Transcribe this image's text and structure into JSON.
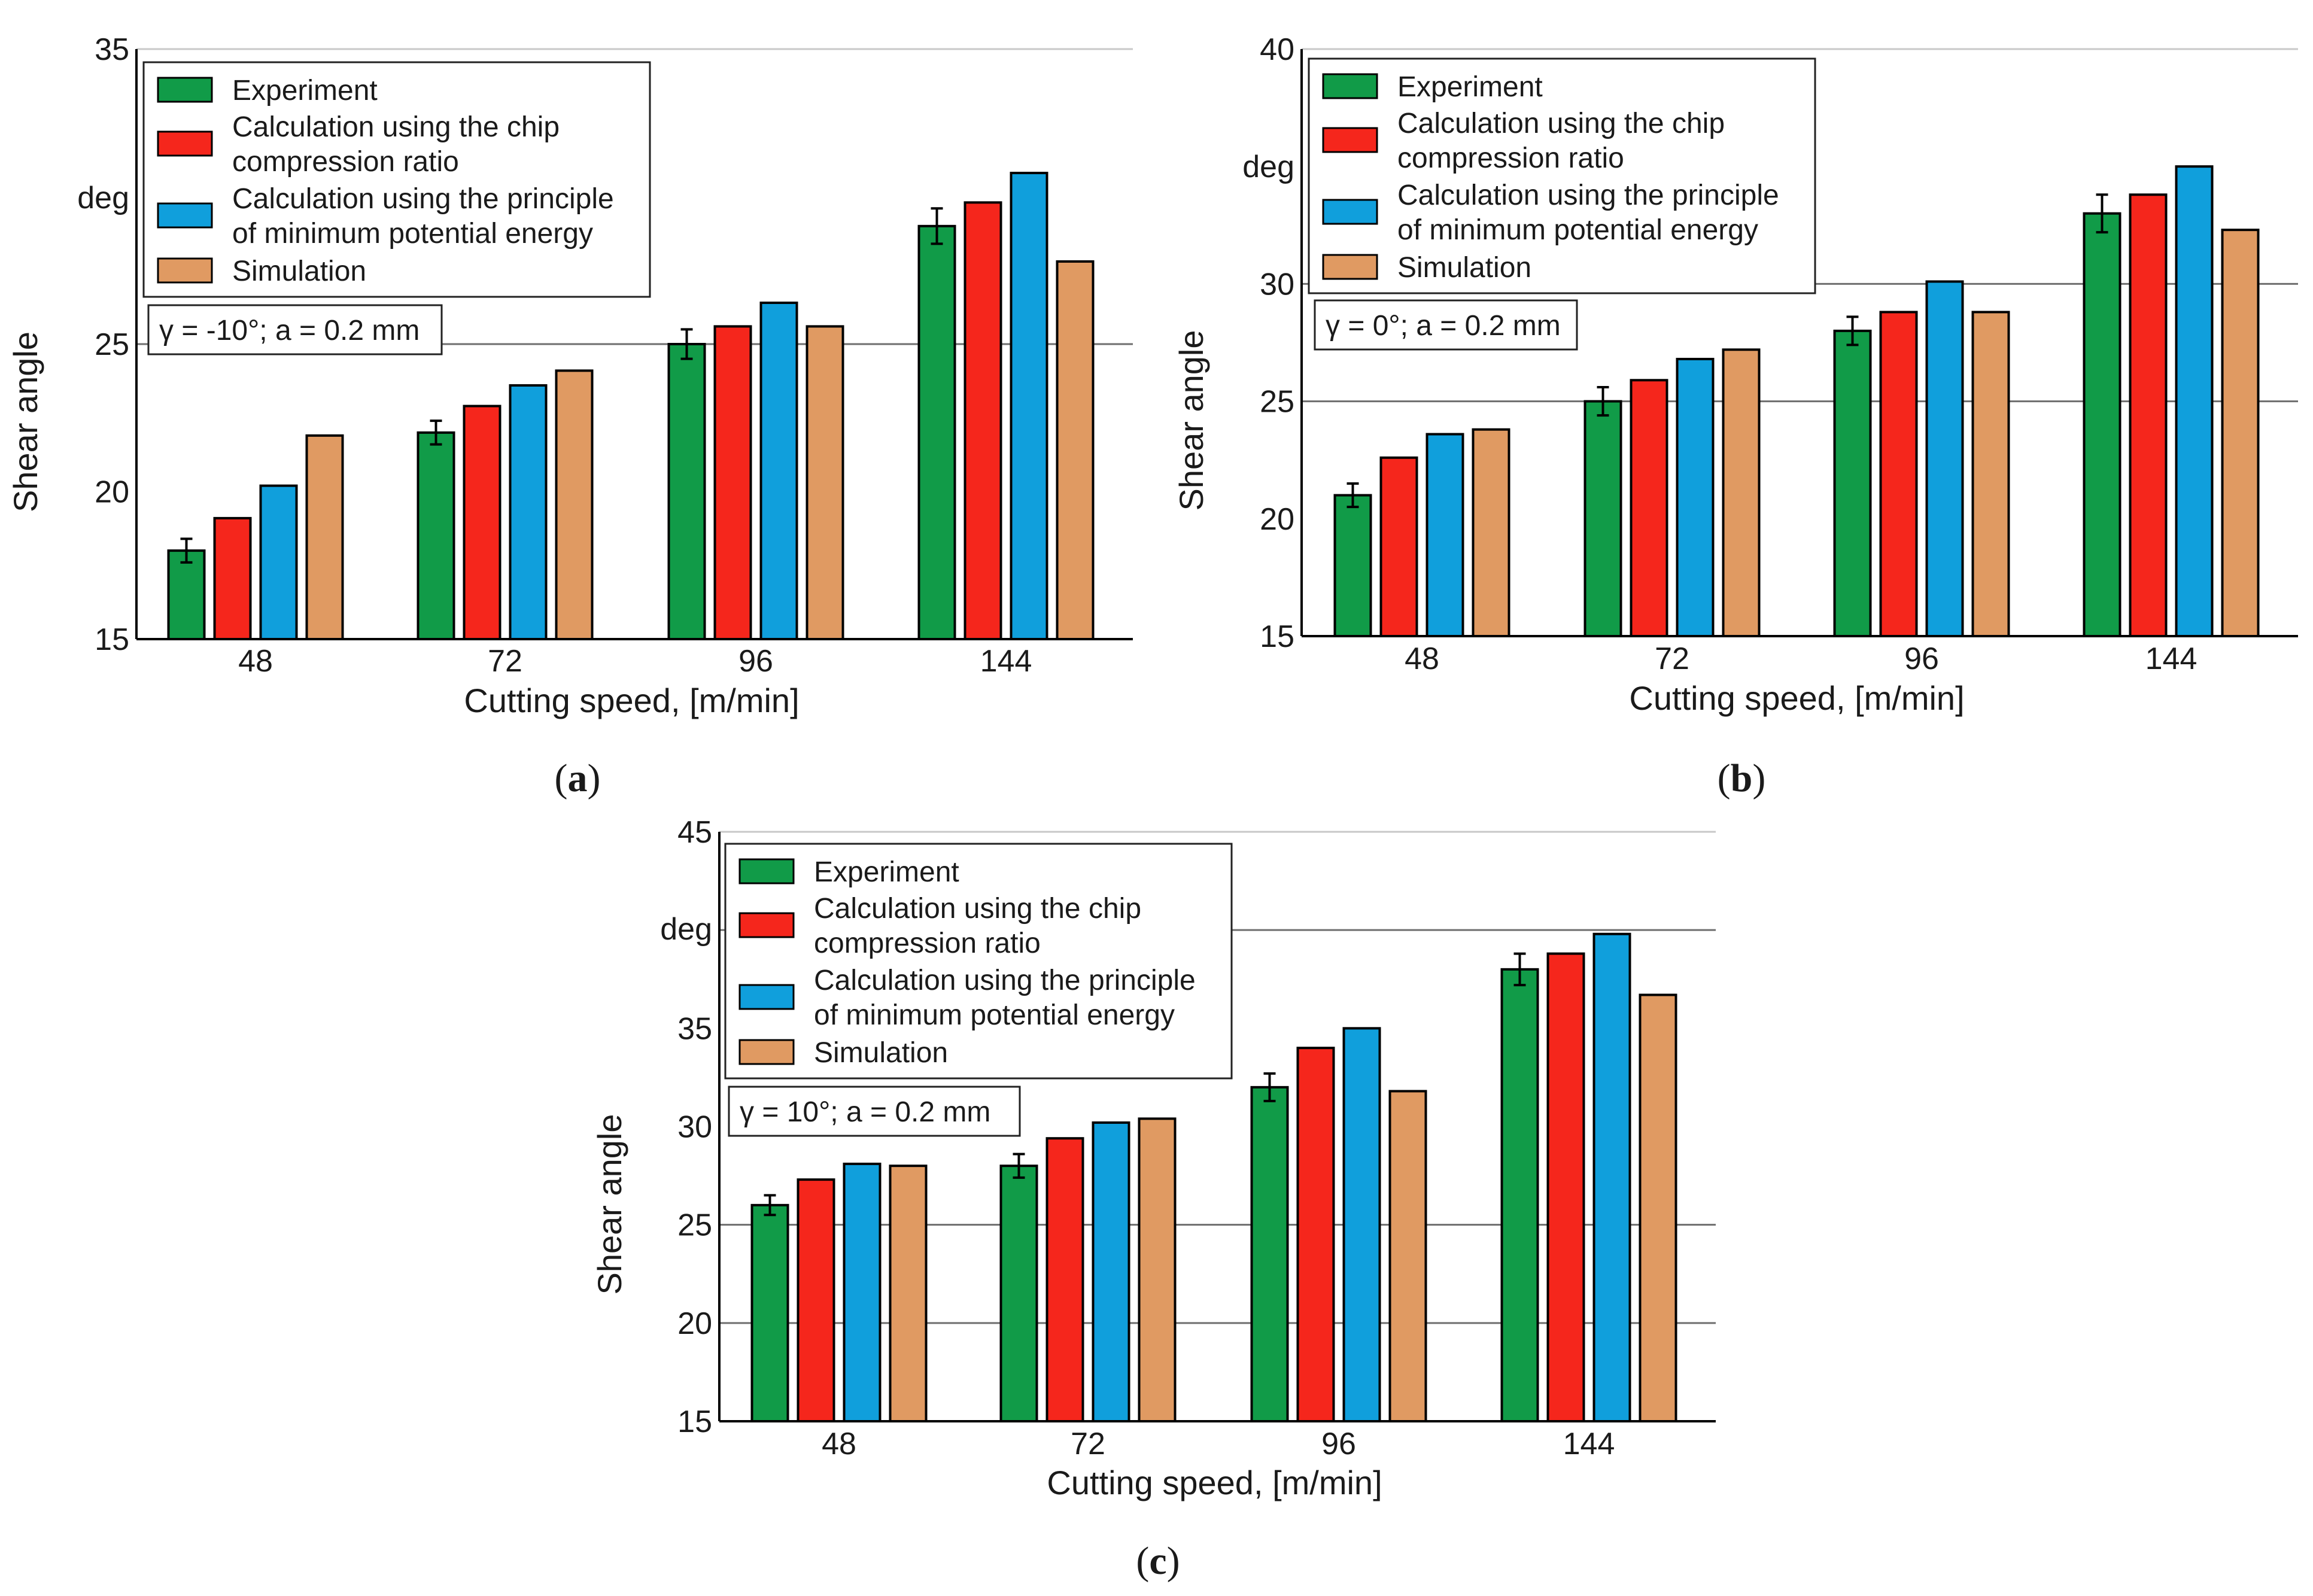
{
  "series_colors": {
    "Experiment": "#119b48",
    "Calculation using the chip compression ratio": "#f5261c",
    "Calculation using the principle of minimum potential energy": "#109fdc",
    "Simulation": "#e09a62"
  },
  "legend_lines": [
    [
      "Experiment"
    ],
    [
      "Calculation using the chip",
      "compression ratio"
    ],
    [
      "Calculation using the principle",
      "of minimum potential energy"
    ],
    [
      "Simulation"
    ]
  ],
  "chart_data": [
    {
      "type": "bar",
      "panel": "a",
      "caption_open": "(",
      "caption_letter": "a",
      "caption_close": ")",
      "title": "",
      "xlabel": "Cutting speed, [m/min]",
      "ylabel": "Shear angle",
      "yunit": "deg",
      "ylim": [
        15,
        35
      ],
      "yticks": [
        "15",
        "20",
        "25",
        "35"
      ],
      "gridlines": [
        25
      ],
      "categories": [
        "48",
        "72",
        "96",
        "144"
      ],
      "annotation": "γ = -10°; a = 0.2 mm",
      "legend_position": "top-left",
      "series": [
        {
          "name": "Experiment",
          "values": [
            18.0,
            22.0,
            25.0,
            29.0
          ],
          "errors": [
            0.4,
            0.4,
            0.5,
            0.6
          ]
        },
        {
          "name": "Calculation using the chip compression ratio",
          "values": [
            19.1,
            22.9,
            25.6,
            29.8
          ]
        },
        {
          "name": "Calculation using the principle of minimum potential energy",
          "values": [
            20.2,
            23.6,
            26.4,
            30.8
          ]
        },
        {
          "name": "Simulation",
          "values": [
            21.9,
            24.1,
            25.6,
            27.8
          ]
        }
      ]
    },
    {
      "type": "bar",
      "panel": "b",
      "caption_open": "(",
      "caption_letter": "b",
      "caption_close": ")",
      "title": "",
      "xlabel": "Cutting speed, [m/min]",
      "ylabel": "Shear angle",
      "yunit": "deg",
      "ylim": [
        15,
        40
      ],
      "yticks": [
        "15",
        "20",
        "25",
        "30",
        "40"
      ],
      "gridlines": [
        25,
        30
      ],
      "categories": [
        "48",
        "72",
        "96",
        "144"
      ],
      "annotation": "γ = 0°; a = 0.2 mm",
      "legend_position": "top-left",
      "series": [
        {
          "name": "Experiment",
          "values": [
            21.0,
            25.0,
            28.0,
            33.0
          ],
          "errors": [
            0.5,
            0.6,
            0.6,
            0.8
          ]
        },
        {
          "name": "Calculation using the chip compression ratio",
          "values": [
            22.6,
            25.9,
            28.8,
            33.8
          ]
        },
        {
          "name": "Calculation using the principle of minimum potential energy",
          "values": [
            23.6,
            26.8,
            30.1,
            35.0
          ]
        },
        {
          "name": "Simulation",
          "values": [
            23.8,
            27.2,
            28.8,
            32.3
          ]
        }
      ]
    },
    {
      "type": "bar",
      "panel": "c",
      "caption_open": "(",
      "caption_letter": "c",
      "caption_close": ")",
      "title": "",
      "xlabel": "Cutting speed, [m/min]",
      "ylabel": "Shear angle",
      "yunit": "deg",
      "ylim": [
        15,
        45
      ],
      "yticks": [
        "15",
        "20",
        "25",
        "30",
        "35",
        "45"
      ],
      "gridlines": [
        20,
        25,
        40
      ],
      "categories": [
        "48",
        "72",
        "96",
        "144"
      ],
      "annotation": "γ = 10°; a = 0.2 mm",
      "legend_position": "top-left",
      "series": [
        {
          "name": "Experiment",
          "values": [
            26.0,
            28.0,
            32.0,
            38.0
          ],
          "errors": [
            0.5,
            0.6,
            0.7,
            0.8
          ]
        },
        {
          "name": "Calculation using the chip compression ratio",
          "values": [
            27.3,
            29.4,
            34.0,
            38.8
          ]
        },
        {
          "name": "Calculation using the principle of minimum potential energy",
          "values": [
            28.1,
            30.2,
            35.0,
            39.8
          ]
        },
        {
          "name": "Simulation",
          "values": [
            28.0,
            30.4,
            31.8,
            36.7
          ]
        }
      ]
    }
  ]
}
